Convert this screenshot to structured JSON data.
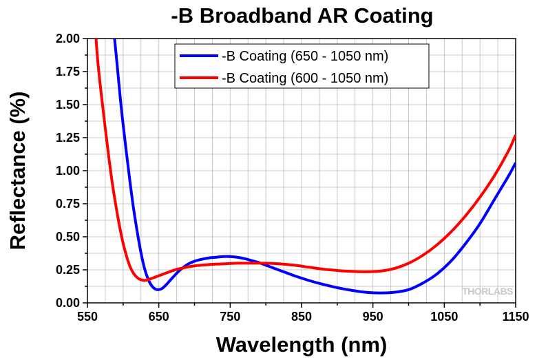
{
  "chart_data": {
    "type": "line",
    "title": "-B Broadband AR Coating",
    "xlabel": "Wavelength (nm)",
    "ylabel": "Reflectance (%)",
    "xlim": [
      550,
      1150
    ],
    "ylim": [
      0,
      2
    ],
    "x_ticks": [
      "550",
      "650",
      "750",
      "850",
      "950",
      "1050",
      "1150"
    ],
    "y_ticks": [
      "0.00",
      "0.25",
      "0.50",
      "0.75",
      "1.00",
      "1.25",
      "1.50",
      "1.75",
      "2.00"
    ],
    "grid": true,
    "legend_position": "top-center",
    "series": [
      {
        "name": "-B Coating (650 - 1050 nm)",
        "color": "#0000ff",
        "x": [
          588,
          592,
          596,
          600,
          605,
          610,
          615,
          620,
          625,
          630,
          635,
          640,
          645,
          650,
          655,
          660,
          665,
          670,
          680,
          690,
          700,
          710,
          720,
          730,
          740,
          750,
          760,
          770,
          780,
          790,
          800,
          820,
          840,
          860,
          880,
          900,
          920,
          940,
          960,
          980,
          1000,
          1020,
          1040,
          1060,
          1080,
          1100,
          1120,
          1140,
          1150
        ],
        "y": [
          2.0,
          1.78,
          1.55,
          1.35,
          1.12,
          0.9,
          0.7,
          0.53,
          0.38,
          0.26,
          0.18,
          0.13,
          0.105,
          0.1,
          0.11,
          0.135,
          0.165,
          0.195,
          0.25,
          0.29,
          0.315,
          0.33,
          0.34,
          0.345,
          0.35,
          0.35,
          0.345,
          0.335,
          0.32,
          0.305,
          0.285,
          0.245,
          0.205,
          0.17,
          0.14,
          0.115,
          0.095,
          0.08,
          0.075,
          0.08,
          0.1,
          0.15,
          0.22,
          0.32,
          0.45,
          0.6,
          0.78,
          0.96,
          1.06
        ]
      },
      {
        "name": "-B Coating (600 - 1050 nm)",
        "color": "#ff0000",
        "x": [
          562,
          565,
          570,
          575,
          580,
          585,
          590,
          595,
          600,
          605,
          610,
          615,
          620,
          625,
          630,
          635,
          640,
          650,
          660,
          670,
          680,
          700,
          720,
          740,
          760,
          780,
          800,
          820,
          840,
          860,
          880,
          900,
          920,
          940,
          960,
          980,
          1000,
          1020,
          1040,
          1060,
          1080,
          1100,
          1120,
          1140,
          1150
        ],
        "y": [
          2.0,
          1.8,
          1.55,
          1.32,
          1.1,
          0.9,
          0.73,
          0.58,
          0.45,
          0.35,
          0.27,
          0.22,
          0.19,
          0.175,
          0.17,
          0.175,
          0.185,
          0.205,
          0.225,
          0.245,
          0.26,
          0.28,
          0.29,
          0.295,
          0.3,
          0.3,
          0.3,
          0.295,
          0.285,
          0.27,
          0.255,
          0.245,
          0.238,
          0.235,
          0.24,
          0.26,
          0.3,
          0.36,
          0.44,
          0.54,
          0.66,
          0.8,
          0.96,
          1.15,
          1.27
        ]
      }
    ]
  },
  "watermark": "THORLABS"
}
